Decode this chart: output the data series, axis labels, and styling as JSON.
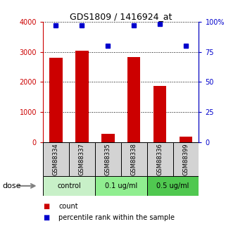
{
  "title": "GDS1809 / 1416924_at",
  "samples": [
    "GSM88334",
    "GSM88337",
    "GSM88335",
    "GSM88338",
    "GSM88336",
    "GSM88399"
  ],
  "counts": [
    2800,
    3050,
    280,
    2820,
    1870,
    180
  ],
  "percentile_ranks": [
    97,
    97,
    80,
    97,
    98,
    80
  ],
  "groups": [
    {
      "label": "control",
      "indices": [
        0,
        1
      ],
      "color": "#c8f0c8"
    },
    {
      "label": "0.1 ug/ml",
      "indices": [
        2,
        3
      ],
      "color": "#90ee90"
    },
    {
      "label": "0.5 ug/ml",
      "indices": [
        4,
        5
      ],
      "color": "#50c850"
    }
  ],
  "bar_color": "#cc0000",
  "dot_color": "#0000cc",
  "ylim_left": [
    0,
    4000
  ],
  "ylim_right": [
    0,
    100
  ],
  "yticks_left": [
    0,
    1000,
    2000,
    3000,
    4000
  ],
  "ytick_labels_left": [
    "0",
    "1000",
    "2000",
    "3000",
    "4000"
  ],
  "yticks_right": [
    0,
    25,
    50,
    75,
    100
  ],
  "ytick_labels_right": [
    "0",
    "25",
    "50",
    "75",
    "100%"
  ],
  "bar_width": 0.5,
  "dose_label": "dose",
  "legend_count_label": "count",
  "legend_percentile_label": "percentile rank within the sample",
  "tick_label_color_left": "#cc0000",
  "tick_label_color_right": "#0000cc",
  "sample_box_color": "#d3d3d3",
  "group_colors": [
    "#c8f0c8",
    "#90ee90",
    "#50c850"
  ]
}
